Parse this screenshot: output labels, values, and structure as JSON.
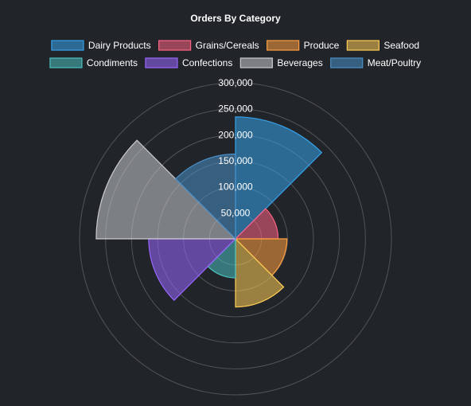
{
  "chart_data": {
    "type": "polarArea",
    "title": "Orders By Category",
    "categories": [
      "Dairy Products",
      "Grains/Cereals",
      "Produce",
      "Seafood",
      "Condiments",
      "Confections",
      "Beverages",
      "Meat/Poultry"
    ],
    "values": [
      234500,
      82000,
      99000,
      131000,
      75000,
      167000,
      268000,
      163000
    ],
    "colors": [
      "#36a2eb",
      "#ff6384",
      "#ff9f40",
      "#ffcd56",
      "#4bc0c0",
      "#9966ff",
      "#c9cbcf",
      "#4a90c8"
    ],
    "rlim": [
      0,
      300000
    ],
    "ticks": [
      "50,000",
      "100,000",
      "150,000",
      "200,000",
      "250,000",
      "300,000"
    ],
    "tick_values": [
      50000,
      100000,
      150000,
      200000,
      250000,
      300000
    ],
    "legend_position": "top",
    "grid": true
  }
}
